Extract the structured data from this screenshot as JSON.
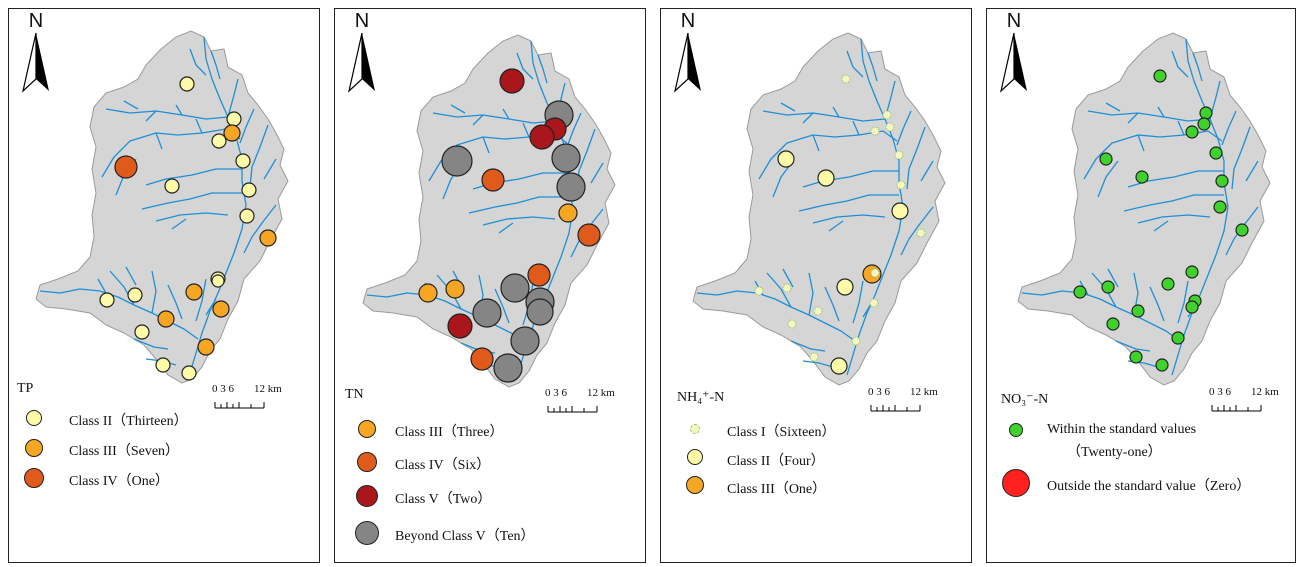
{
  "north_label": "N",
  "scale": {
    "ticks": "0 3 6",
    "end": "12 km"
  },
  "colors": {
    "basin_fill": "#d5d5d5",
    "basin_stroke": "#9a9a9a",
    "river": "#1e8fd6",
    "class_i_nh4": "#f4f7c2",
    "class_ii": "#fdfaa8",
    "class_iii": "#f6a623",
    "class_iv": "#e05a1c",
    "class_v": "#a9161b",
    "beyond_v": "#858585",
    "no3_within": "#3fd22c",
    "no3_outside": "#ff2020"
  },
  "panels": [
    {
      "parameter": "TP",
      "legend": [
        {
          "label": "Class II（Thirteen）",
          "class": "class_ii"
        },
        {
          "label": "Class III（Seven）",
          "class": "class_iii"
        },
        {
          "label": "Class IV（One）",
          "class": "class_iv"
        }
      ]
    },
    {
      "parameter": "TN",
      "legend": [
        {
          "label": "Class III（Three）",
          "class": "class_iii"
        },
        {
          "label": "Class IV（Six）",
          "class": "class_iv"
        },
        {
          "label": "Class V（Two）",
          "class": "class_v"
        },
        {
          "label": "Beyond Class V（Ten）",
          "class": "beyond_v"
        }
      ]
    },
    {
      "parameter": "NH₄⁺-N",
      "legend": [
        {
          "label": "Class I（Sixteen）",
          "class": "class_i_nh4"
        },
        {
          "label": "Class II（Four）",
          "class": "class_ii"
        },
        {
          "label": "Class III（One）",
          "class": "class_iii"
        }
      ]
    },
    {
      "parameter": "NO₃⁻-N",
      "legend": [
        {
          "label": "Within the standard values",
          "label_line2": "（Twenty-one）",
          "class": "no3_within"
        },
        {
          "label": "Outside the standard value（Zero）",
          "class": "no3_outside"
        }
      ]
    }
  ]
}
